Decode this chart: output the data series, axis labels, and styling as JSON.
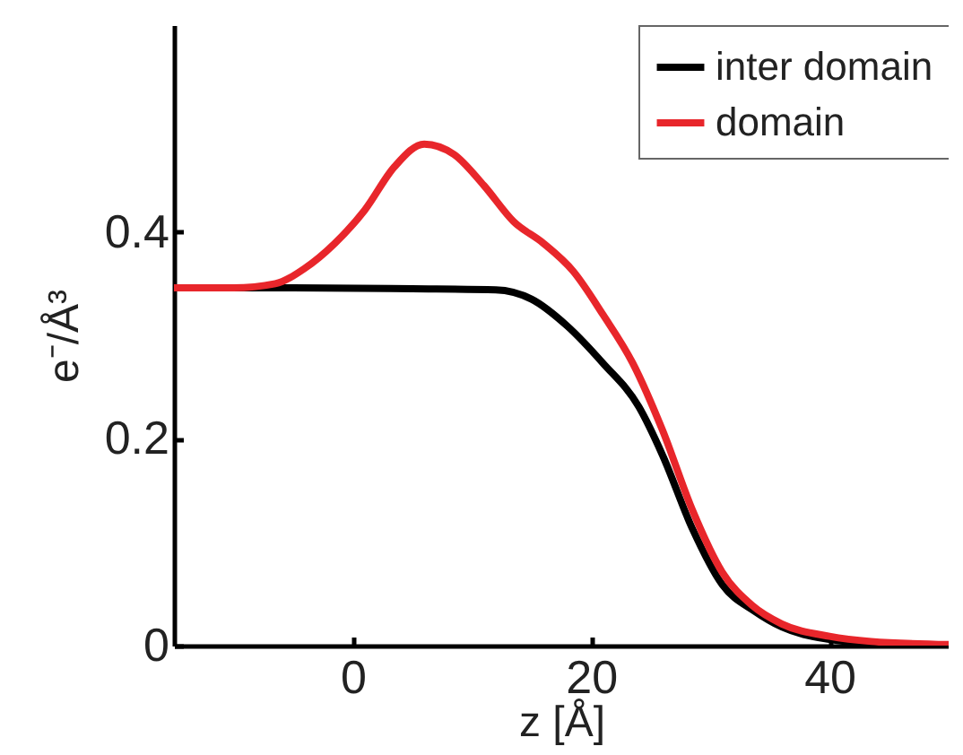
{
  "chart_data": {
    "type": "line",
    "xlabel": "z [Å]",
    "ylabel": "e⁻/Å³",
    "xlim": [
      -15,
      50
    ],
    "ylim": [
      0,
      0.6
    ],
    "xticks": [
      0,
      20,
      40
    ],
    "yticks": [
      0,
      0.2,
      0.4
    ],
    "grid": false,
    "legend": "top right",
    "line_style": "solid",
    "marker": "none",
    "series": [
      {
        "name": "inter domain",
        "color": "#000000",
        "x": [
          -15,
          -5,
          5,
          12,
          15,
          18,
          21,
          24,
          26,
          28.5,
          31,
          33.75,
          36,
          40,
          43.5,
          50
        ],
        "values": [
          0.346,
          0.346,
          0.345,
          0.344,
          0.335,
          0.309,
          0.273,
          0.231,
          0.184,
          0.113,
          0.059,
          0.033,
          0.018,
          0.006,
          0.002,
          0.0
        ]
      },
      {
        "name": "domain",
        "color": "#e8262b",
        "x": [
          -15,
          -10,
          -6.5,
          -4,
          -1.5,
          1,
          3.5,
          6,
          8.5,
          11,
          13.5,
          16,
          18.5,
          21,
          23.5,
          26,
          28.5,
          31,
          33.5,
          36,
          40,
          43.5,
          50
        ],
        "values": [
          0.346,
          0.346,
          0.35,
          0.365,
          0.389,
          0.421,
          0.463,
          0.485,
          0.475,
          0.445,
          0.41,
          0.389,
          0.362,
          0.32,
          0.273,
          0.208,
          0.131,
          0.071,
          0.039,
          0.021,
          0.009,
          0.004,
          0.001
        ]
      }
    ]
  }
}
